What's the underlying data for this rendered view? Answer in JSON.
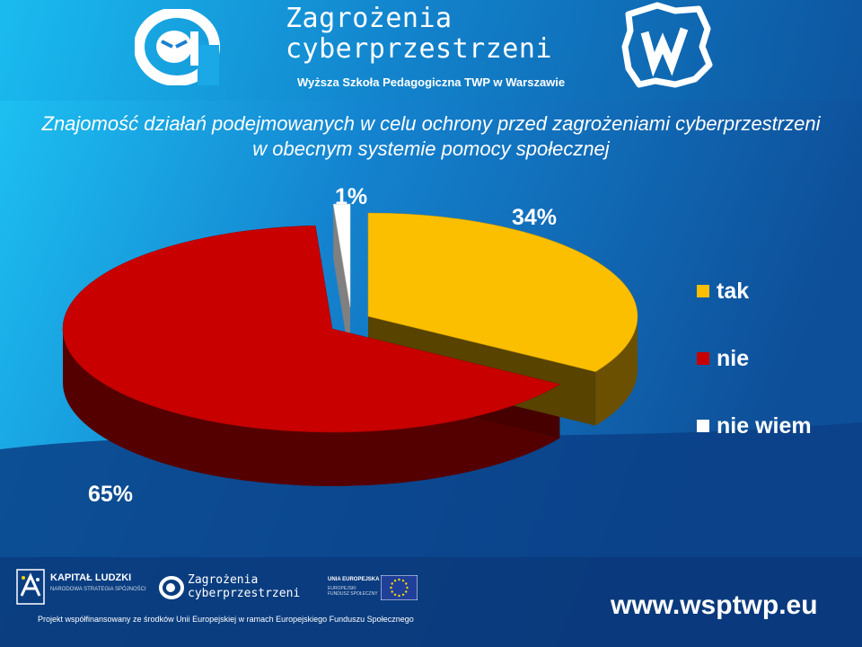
{
  "header": {
    "title_line1": "Zagrożenia",
    "title_line2": "cyberprzestrzeni",
    "subtitle": "Wyższa Szkoła Pedagogiczna TWP w Warszawie"
  },
  "chart_data": {
    "type": "pie",
    "title": "Znajomość działań podejmowanych w celu ochrony przed zagrożeniami cyberprzestrzeni w obecnym systemie pomocy społecznej",
    "categories": [
      "tak",
      "nie",
      "nie wiem"
    ],
    "values": [
      34,
      65,
      1
    ],
    "labels": [
      "34%",
      "65%",
      "1%"
    ],
    "colors": [
      "#fcbf00",
      "#c80000",
      "#ffffff"
    ],
    "legend_position": "right",
    "style": "3d-exploded"
  },
  "footer": {
    "kapital_title": "KAPITAŁ LUDZKI",
    "kapital_sub": "NARODOWA STRATEGIA SPÓJNOŚCI",
    "logo_line1": "Zagrożenia",
    "logo_line2": "cyberprzestrzeni",
    "eu_title": "UNIA EUROPEJSKA",
    "eu_sub1": "EUROPEJSKI",
    "eu_sub2": "FUNDUSZ SPOŁECZNY",
    "funding": "Projekt współfinansowany ze środków Unii Europejskiej w ramach Europejskiego Funduszu Społecznego",
    "website": "www.wsptwp.eu"
  },
  "icons": [
    "at-sign-icon",
    "twp-poland-map-icon",
    "kapital-ludzki-icon",
    "eu-flag-icon"
  ]
}
